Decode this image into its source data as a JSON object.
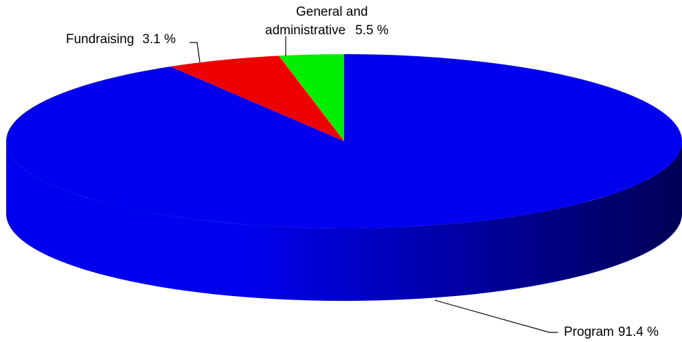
{
  "chart_data": {
    "type": "pie",
    "style": "3d",
    "title": "",
    "slices": [
      {
        "label": "Program",
        "value": 91.4,
        "value_text": "91.4 %",
        "color": "#0000ee"
      },
      {
        "label": "General and administrative",
        "label_lines": [
          "General and",
          "administrative"
        ],
        "value": 5.5,
        "value_text": "5.5 %",
        "color": "#ee0000"
      },
      {
        "label": "Fundraising",
        "value": 3.1,
        "value_text": "3.1 %",
        "color": "#00ee00"
      }
    ],
    "side_color_light": "#0000ee",
    "side_color_dark": "#000055"
  }
}
